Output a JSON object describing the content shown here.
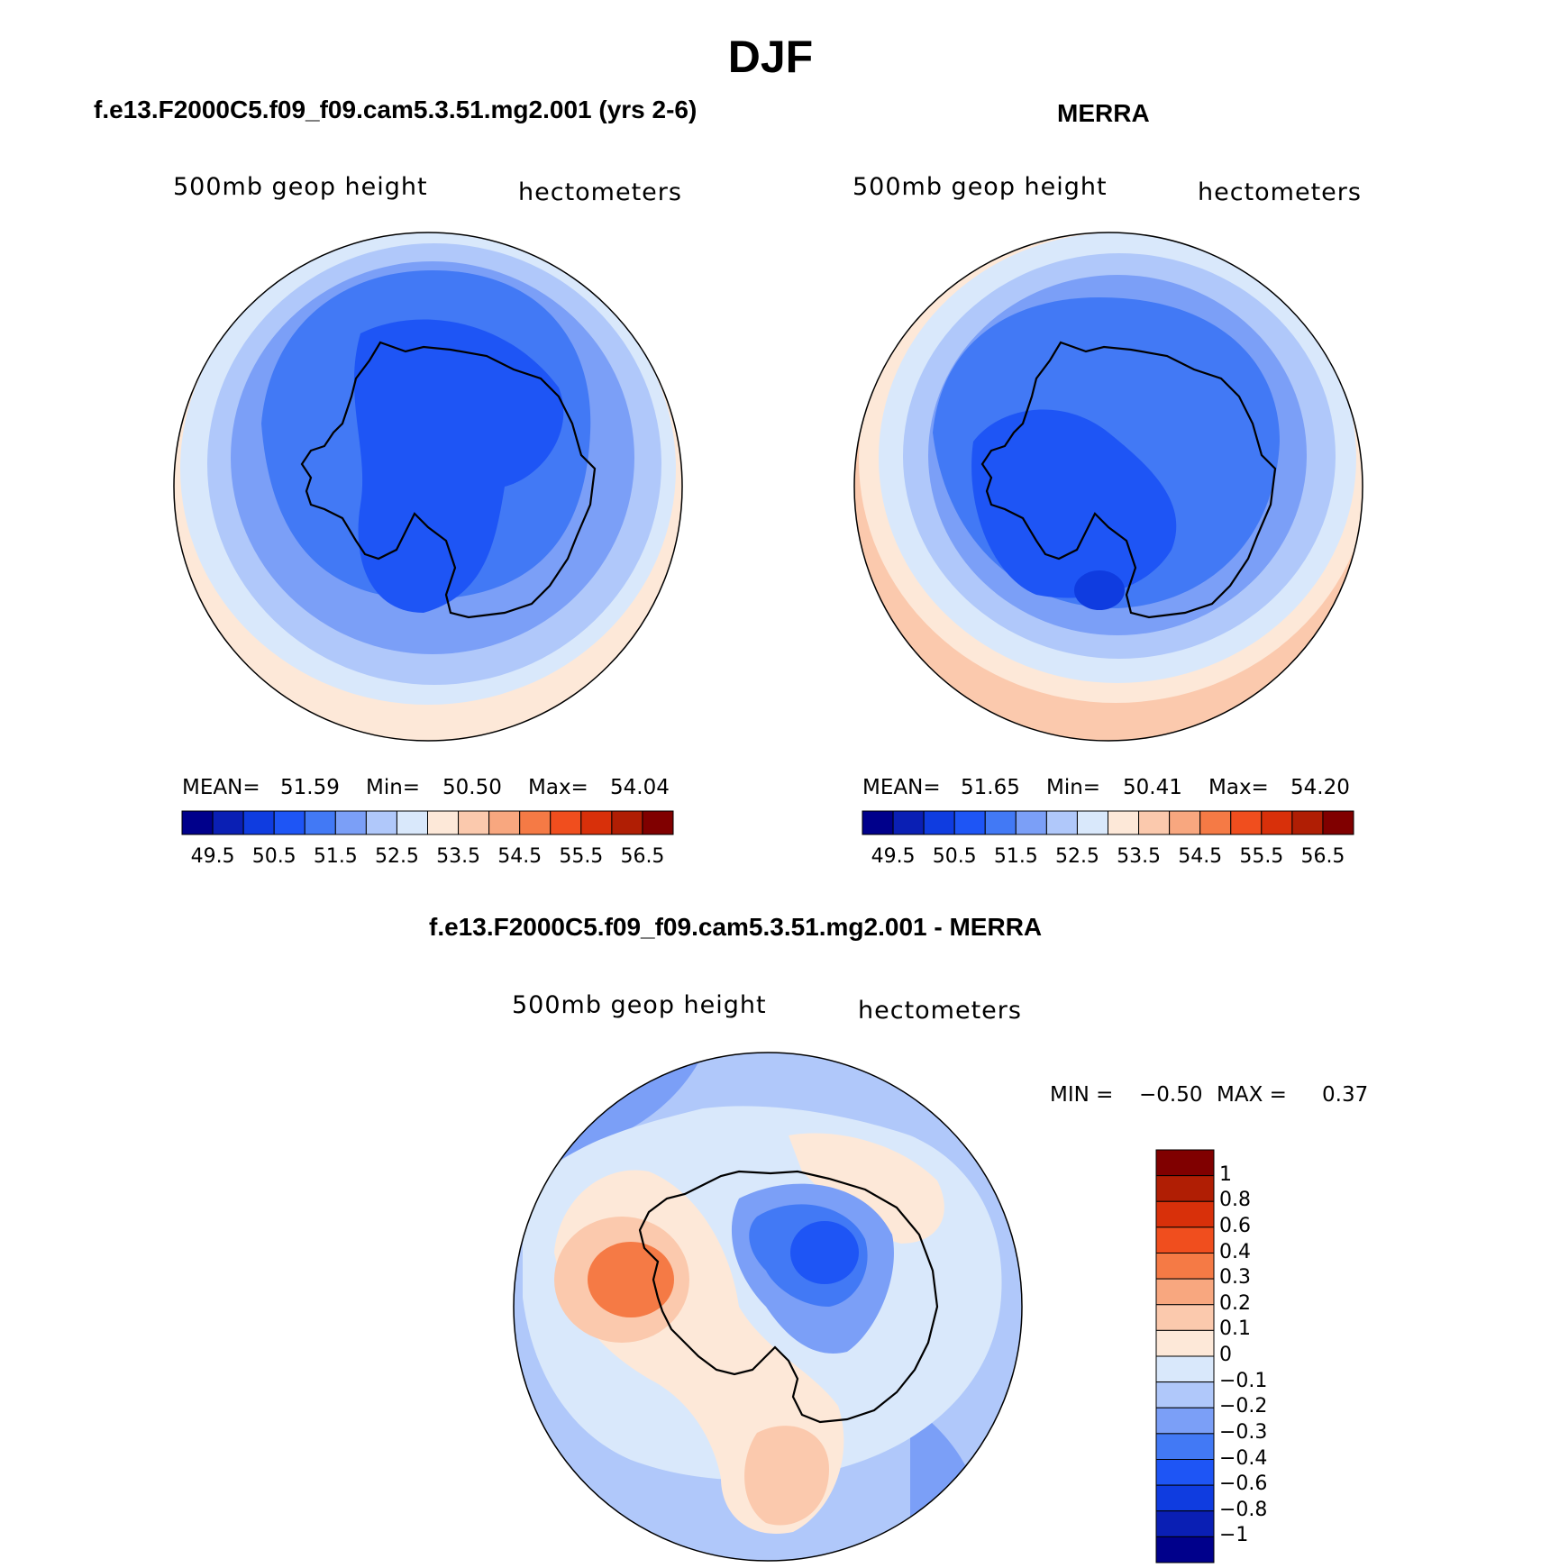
{
  "figure": {
    "season": "DJF",
    "left_title": "f.e13.F2000C5.f09_f09.cam5.3.51.mg2.001 (yrs 2-6)",
    "right_title": "MERRA",
    "diff_title": "f.e13.F2000C5.f09_f09.cam5.3.51.mg2.001 - MERRA"
  },
  "panels": {
    "model": {
      "variable": "500mb geop height",
      "units": "hectometers",
      "mean_label": "MEAN=",
      "mean": "51.59",
      "min_label": "Min=",
      "min": "50.50",
      "max_label": "Max=",
      "max": "54.04"
    },
    "obs": {
      "variable": "500mb geop height",
      "units": "hectometers",
      "mean_label": "MEAN=",
      "mean": "51.65",
      "min_label": "Min=",
      "min": "50.41",
      "max_label": "Max=",
      "max": "54.20"
    },
    "diff": {
      "variable": "500mb geop height",
      "units": "hectometers",
      "min_label": "MIN =",
      "min": "−0.50",
      "max_label": "MAX =",
      "max": "0.37"
    }
  },
  "chart_data": [
    {
      "type": "heatmap",
      "projection": "south polar stereographic",
      "title": "f.e13.F2000C5.f09_f09.cam5.3.51.mg2.001 (yrs 2-6)",
      "field": "500mb geop height",
      "units": "hectometers",
      "stats": {
        "mean": 51.59,
        "min": 50.5,
        "max": 54.04
      },
      "contour_levels": [
        49.5,
        50.0,
        50.5,
        51.0,
        51.5,
        52.0,
        52.5,
        53.0,
        53.5,
        54.0,
        54.5,
        55.0,
        55.5,
        56.0,
        56.5
      ],
      "colorbar_tick_labels": [
        "49.5",
        "50.5",
        "51.5",
        "52.5",
        "53.5",
        "54.5",
        "55.5",
        "56.5"
      ],
      "colors": [
        "#00008b",
        "#0a1fb4",
        "#0f3ce0",
        "#1e55f5",
        "#4279f5",
        "#7b9ff7",
        "#b0c8fa",
        "#d9e8fb",
        "#fde8d8",
        "#fbc9ad",
        "#f8a77f",
        "#f57a45",
        "#f04e1e",
        "#d8300a",
        "#b01e04",
        "#800000"
      ],
      "legend_position": "bottom"
    },
    {
      "type": "heatmap",
      "projection": "south polar stereographic",
      "title": "MERRA",
      "field": "500mb geop height",
      "units": "hectometers",
      "stats": {
        "mean": 51.65,
        "min": 50.41,
        "max": 54.2
      },
      "contour_levels": [
        49.5,
        50.0,
        50.5,
        51.0,
        51.5,
        52.0,
        52.5,
        53.0,
        53.5,
        54.0,
        54.5,
        55.0,
        55.5,
        56.0,
        56.5
      ],
      "colorbar_tick_labels": [
        "49.5",
        "50.5",
        "51.5",
        "52.5",
        "53.5",
        "54.5",
        "55.5",
        "56.5"
      ],
      "colors": [
        "#00008b",
        "#0a1fb4",
        "#0f3ce0",
        "#1e55f5",
        "#4279f5",
        "#7b9ff7",
        "#b0c8fa",
        "#d9e8fb",
        "#fde8d8",
        "#fbc9ad",
        "#f8a77f",
        "#f57a45",
        "#f04e1e",
        "#d8300a",
        "#b01e04",
        "#800000"
      ],
      "legend_position": "bottom"
    },
    {
      "type": "heatmap",
      "projection": "south polar stereographic",
      "title": "f.e13.F2000C5.f09_f09.cam5.3.51.mg2.001 - MERRA",
      "field": "500mb geop height",
      "units": "hectometers",
      "stats": {
        "min": -0.5,
        "max": 0.37
      },
      "contour_levels": [
        -1,
        -0.8,
        -0.6,
        -0.4,
        -0.3,
        -0.2,
        -0.1,
        0,
        0.1,
        0.2,
        0.3,
        0.4,
        0.6,
        0.8,
        1
      ],
      "colorbar_tick_labels": [
        "1",
        "0.8",
        "0.6",
        "0.4",
        "0.3",
        "0.2",
        "0.1",
        "0",
        "−0.1",
        "−0.2",
        "−0.3",
        "−0.4",
        "−0.6",
        "−0.8",
        "−1"
      ],
      "colors": [
        "#800000",
        "#b01e04",
        "#d8300a",
        "#f04e1e",
        "#f57a45",
        "#f8a77f",
        "#fbc9ad",
        "#fde8d8",
        "#d9e8fb",
        "#b0c8fa",
        "#7b9ff7",
        "#4279f5",
        "#1e55f5",
        "#0f3ce0",
        "#0a1fb4",
        "#00008b"
      ],
      "legend_position": "right"
    }
  ]
}
